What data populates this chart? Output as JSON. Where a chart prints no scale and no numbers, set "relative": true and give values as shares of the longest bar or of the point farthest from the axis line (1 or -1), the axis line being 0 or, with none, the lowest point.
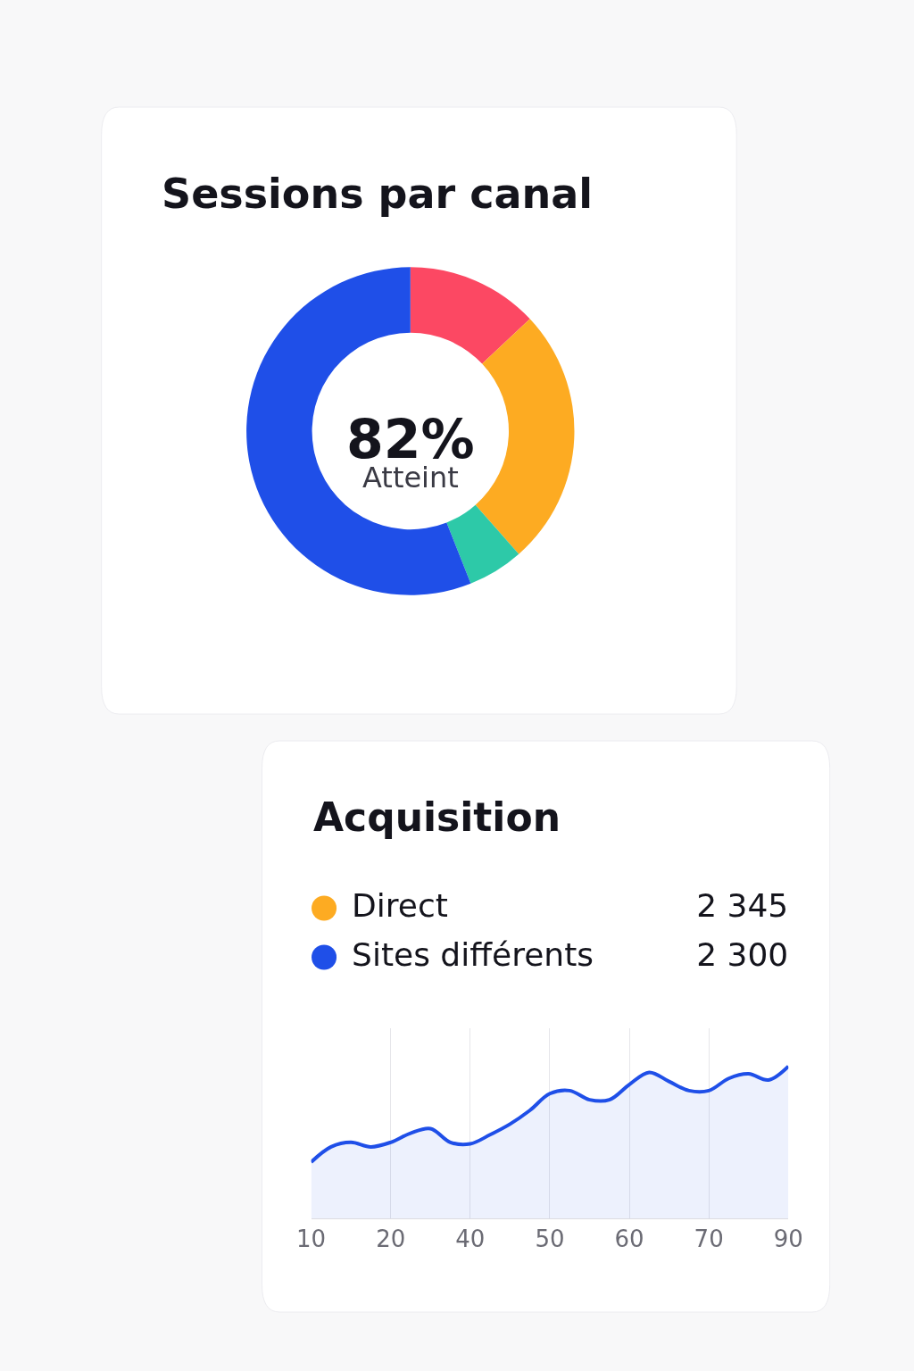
{
  "chart_data": [
    {
      "type": "donut",
      "title": "Sessions par canal",
      "categories": [
        null,
        null,
        null,
        null
      ],
      "values": [
        13,
        25.5,
        5.5,
        56
      ],
      "colors": [
        "#fc4863",
        "#fdab22",
        "#2dc9a8",
        "#1f4fe8"
      ],
      "annotations": [
        "82%",
        "Atteint"
      ]
    },
    {
      "type": "other",
      "title": "Acquisition",
      "categories": [
        "Direct",
        "Sites différents"
      ],
      "values": [
        2345,
        2300
      ],
      "colors": [
        "#fdab22",
        "#1f4fe8"
      ],
      "data_labels": true
    },
    {
      "type": "area",
      "relative": true,
      "categories": [
        "10",
        null,
        null,
        null,
        "20",
        null,
        null,
        null,
        "40",
        null,
        null,
        null,
        "50",
        null,
        null,
        null,
        "60",
        null,
        null,
        null,
        "70",
        null,
        null,
        null,
        "90"
      ],
      "series": [
        {
          "color": "#1f4fe8",
          "values": [
            0.37,
            0.47,
            0.5,
            0.47,
            0.5,
            0.56,
            0.59,
            0.5,
            0.49,
            0.55,
            0.62,
            0.71,
            0.82,
            0.84,
            0.78,
            0.78,
            0.88,
            0.96,
            0.9,
            0.84,
            0.84,
            0.92,
            0.95,
            0.91,
            1
          ]
        }
      ],
      "grid": "x"
    }
  ]
}
